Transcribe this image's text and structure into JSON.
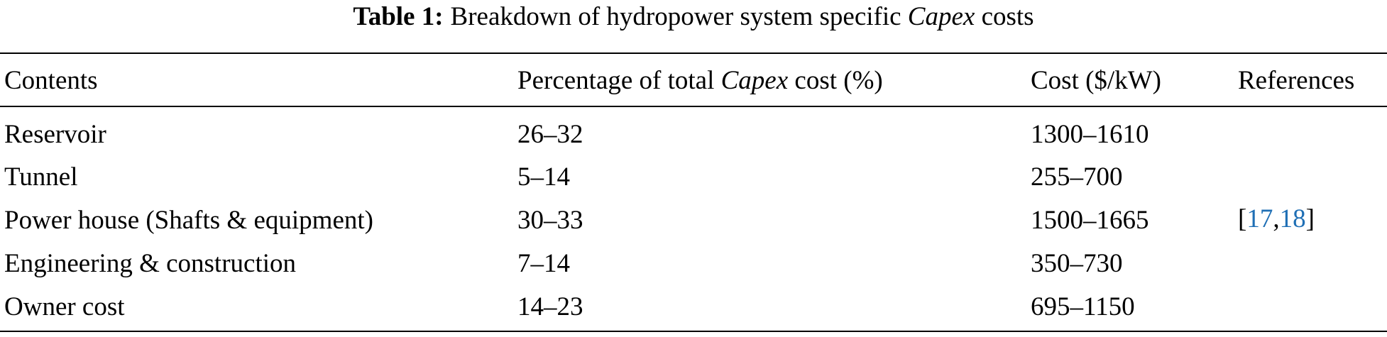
{
  "caption": {
    "label": "Table 1:",
    "text": [
      "Breakdown of hydropower system specific",
      "Capex",
      "costs"
    ]
  },
  "table": {
    "header": [
      "Contents",
      [
        "Percentage of total",
        "Capex",
        "cost (%)"
      ],
      "Cost ($/kW)",
      "References"
    ],
    "rows": [
      [
        "Reservoir",
        "26–32",
        "1300–1610"
      ],
      [
        "Tunnel",
        "5–14",
        "255–700"
      ],
      [
        "Power house (Shafts & equipment)",
        "30–33",
        "1500–1665"
      ],
      [
        "Engineering & construction",
        "7–14",
        "350–730"
      ],
      [
        "Owner cost",
        "14–23",
        "695–1150"
      ]
    ],
    "references": [
      "[",
      "17",
      ",",
      "18",
      "]"
    ]
  }
}
